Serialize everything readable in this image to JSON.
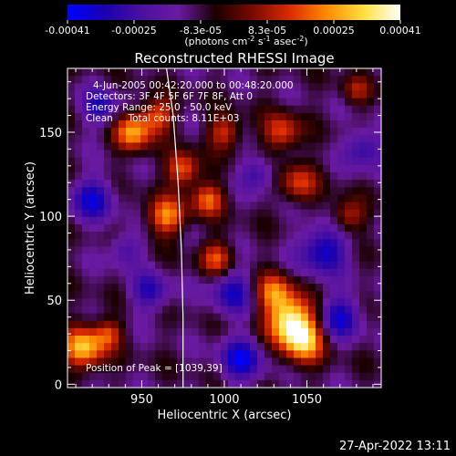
{
  "chart_data": {
    "type": "heatmap",
    "title": "Reconstructed RHESSI Image",
    "xlabel": "Heliocentric X (arcsec)",
    "ylabel": "Heliocentric Y (arcsec)",
    "xlim": [
      905,
      1095
    ],
    "ylim": [
      -2,
      188
    ],
    "x_ticks": [
      950,
      1000,
      1050
    ],
    "y_ticks": [
      0,
      50,
      100,
      150
    ],
    "colorbar": {
      "ticks": [
        "-0.00041",
        "-0.00025",
        "-8.3e-05",
        "8.3e-05",
        "0.00025",
        "0.00041"
      ],
      "unit_main": "(photons cm",
      "unit_exp1": "-2",
      "unit_mid": " s",
      "unit_exp2": "-1",
      "unit_end": " asec",
      "unit_exp3": "-2",
      "unit_close": ")",
      "colors": [
        "#0000ff",
        "#1a00b0",
        "#4a10a0",
        "#6a1aa0",
        "#1a0000",
        "#7a0a00",
        "#d92a00",
        "#ff8a00",
        "#ffe040",
        "#ffffff"
      ]
    },
    "limb_curve": [
      [
        965,
        188
      ],
      [
        969,
        160
      ],
      [
        972,
        120
      ],
      [
        974,
        80
      ],
      [
        975,
        40
      ],
      [
        975,
        -2
      ]
    ],
    "annotations": [
      "4-Jun-2005 00:42:20.000 to 00:48:20.000",
      "Detectors: 3F 4F 5F 6F 7F 8F, Att 0",
      "Energy Range: 25.0 - 50.0 keV",
      "Clean     Total counts: 8.11E+03"
    ],
    "peak_label": "Position of Peak = [1039,39]",
    "peak": [
      1039,
      39
    ],
    "blobs": [
      {
        "x": 1040,
        "y": 38,
        "v": 1.0,
        "s": 10
      },
      {
        "x": 1048,
        "y": 25,
        "v": 0.75,
        "s": 9
      },
      {
        "x": 1030,
        "y": 55,
        "v": 0.6,
        "s": 8
      },
      {
        "x": 915,
        "y": 22,
        "v": 0.85,
        "s": 9
      },
      {
        "x": 930,
        "y": 30,
        "v": 0.45,
        "s": 6
      },
      {
        "x": 945,
        "y": 150,
        "v": 0.75,
        "s": 8
      },
      {
        "x": 960,
        "y": 160,
        "v": 0.55,
        "s": 7
      },
      {
        "x": 965,
        "y": 100,
        "v": 0.7,
        "s": 8
      },
      {
        "x": 975,
        "y": 128,
        "v": 0.65,
        "s": 7
      },
      {
        "x": 990,
        "y": 110,
        "v": 0.6,
        "s": 7
      },
      {
        "x": 1000,
        "y": 150,
        "v": 0.5,
        "s": 7
      },
      {
        "x": 995,
        "y": 75,
        "v": 0.55,
        "s": 7
      },
      {
        "x": 1035,
        "y": 150,
        "v": 0.55,
        "s": 8
      },
      {
        "x": 1045,
        "y": 120,
        "v": 0.5,
        "s": 8
      },
      {
        "x": 1075,
        "y": 100,
        "v": 0.45,
        "s": 7
      },
      {
        "x": 1080,
        "y": 175,
        "v": 0.35,
        "s": 6
      },
      {
        "x": 1060,
        "y": 80,
        "v": -0.6,
        "s": 10
      },
      {
        "x": 1070,
        "y": 40,
        "v": -0.55,
        "s": 9
      },
      {
        "x": 920,
        "y": 110,
        "v": -0.55,
        "s": 9
      },
      {
        "x": 925,
        "y": 165,
        "v": -0.45,
        "s": 8
      },
      {
        "x": 1005,
        "y": 55,
        "v": -0.5,
        "s": 9
      },
      {
        "x": 1010,
        "y": 15,
        "v": -0.6,
        "s": 9
      },
      {
        "x": 955,
        "y": 55,
        "v": -0.45,
        "s": 8
      },
      {
        "x": 1085,
        "y": 140,
        "v": -0.45,
        "s": 8
      },
      {
        "x": 940,
        "y": 80,
        "v": -0.35,
        "s": 7
      },
      {
        "x": 1020,
        "y": 125,
        "v": -0.4,
        "s": 7
      }
    ]
  },
  "footer": {
    "timestamp": "27-Apr-2022 13:11"
  }
}
